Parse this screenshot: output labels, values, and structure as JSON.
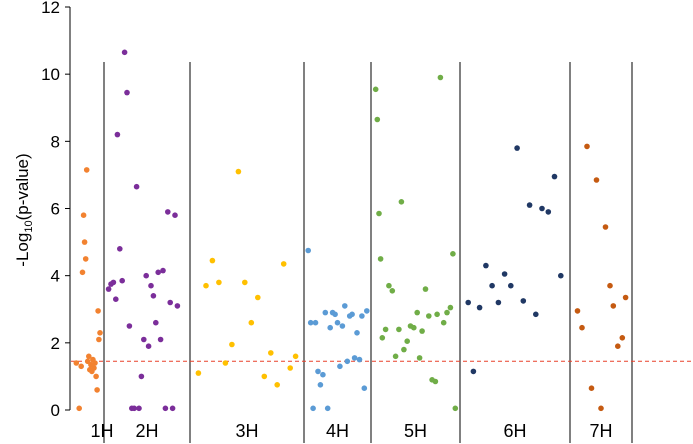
{
  "chart_data": {
    "type": "scatter",
    "title": "",
    "xlabel": "",
    "ylabel": {
      "prefix": "-Log",
      "sub": "10",
      "suffix": "(p-value)"
    },
    "ylim": [
      0,
      12
    ],
    "yticks": [
      "0",
      "2",
      "4",
      "6",
      "8",
      "10",
      "12"
    ],
    "threshold": 1.45,
    "threshold_color": "#e8402a",
    "grid": false,
    "chromosomes": [
      {
        "name": "1H",
        "color": "#f28230",
        "x": [
          0.05,
          0.16,
          0.24,
          0.29,
          0.33,
          0.37,
          0.41,
          0.45,
          0.49,
          0.53,
          0.57,
          0.61,
          0.65,
          0.69,
          0.73,
          0.77,
          0.81,
          0.85,
          0.89,
          0.92,
          0.96
        ],
        "y": [
          1.4,
          0.05,
          1.3,
          4.1,
          5.8,
          5.0,
          4.5,
          7.15,
          1.45,
          1.6,
          1.2,
          1.35,
          1.15,
          1.5,
          1.25,
          1.4,
          1.0,
          0.6,
          2.95,
          2.1,
          2.3
        ]
      },
      {
        "name": "2H",
        "color": "#7b2e9a",
        "x": [
          0.02,
          0.05,
          0.08,
          0.11,
          0.13,
          0.16,
          0.19,
          0.22,
          0.25,
          0.28,
          0.31,
          0.34,
          0.37,
          0.4,
          0.43,
          0.46,
          0.49,
          0.52,
          0.55,
          0.58,
          0.61,
          0.64,
          0.67,
          0.7,
          0.73,
          0.76,
          0.79,
          0.82,
          0.85,
          0.88
        ],
        "y": [
          3.6,
          3.75,
          3.8,
          3.3,
          8.2,
          4.8,
          3.85,
          10.65,
          9.45,
          2.5,
          0.05,
          0.05,
          6.65,
          0.05,
          1.0,
          2.1,
          4.0,
          1.9,
          3.7,
          3.4,
          2.6,
          4.1,
          2.1,
          4.15,
          0.05,
          5.9,
          3.2,
          0.05,
          5.8,
          3.1
        ]
      },
      {
        "name": "3H",
        "color": "#ffc000",
        "x": [
          0.05,
          0.12,
          0.18,
          0.24,
          0.3,
          0.36,
          0.42,
          0.48,
          0.54,
          0.6,
          0.66,
          0.72,
          0.78,
          0.84,
          0.9,
          0.95
        ],
        "y": [
          1.1,
          3.7,
          4.45,
          3.8,
          1.4,
          1.95,
          7.1,
          3.8,
          2.6,
          3.35,
          1.0,
          1.7,
          0.75,
          4.35,
          1.25,
          1.6
        ]
      },
      {
        "name": "4H",
        "color": "#5b9bd5",
        "x": [
          0.02,
          0.06,
          0.1,
          0.14,
          0.18,
          0.22,
          0.26,
          0.3,
          0.34,
          0.38,
          0.42,
          0.46,
          0.5,
          0.54,
          0.58,
          0.62,
          0.66,
          0.7,
          0.74,
          0.78,
          0.82,
          0.86,
          0.9,
          0.94,
          0.98
        ],
        "y": [
          4.75,
          2.6,
          0.05,
          2.6,
          1.15,
          0.75,
          1.05,
          2.9,
          0.05,
          2.45,
          2.9,
          2.85,
          2.6,
          1.3,
          2.5,
          3.1,
          1.45,
          2.8,
          2.85,
          1.55,
          2.3,
          1.5,
          2.8,
          0.65,
          2.95
        ]
      },
      {
        "name": "5H",
        "color": "#70ad47",
        "x": [
          0.02,
          0.04,
          0.06,
          0.08,
          0.1,
          0.14,
          0.18,
          0.22,
          0.26,
          0.3,
          0.33,
          0.36,
          0.4,
          0.44,
          0.48,
          0.52,
          0.55,
          0.58,
          0.62,
          0.66,
          0.7,
          0.74,
          0.76,
          0.8,
          0.84,
          0.88,
          0.92,
          0.95,
          0.98
        ],
        "y": [
          9.55,
          8.65,
          5.85,
          4.5,
          2.15,
          2.4,
          3.7,
          3.55,
          1.6,
          2.4,
          6.2,
          1.8,
          2.05,
          2.5,
          2.45,
          2.9,
          1.55,
          2.35,
          3.6,
          2.8,
          0.9,
          0.85,
          2.85,
          9.9,
          2.6,
          2.9,
          3.05,
          4.65,
          0.05
        ]
      },
      {
        "name": "6H",
        "color": "#203864",
        "x": [
          0.05,
          0.1,
          0.16,
          0.22,
          0.28,
          0.34,
          0.4,
          0.46,
          0.52,
          0.58,
          0.64,
          0.7,
          0.76,
          0.82,
          0.88,
          0.94
        ],
        "y": [
          3.2,
          1.15,
          3.05,
          4.3,
          3.7,
          3.2,
          4.05,
          3.7,
          7.8,
          3.25,
          6.1,
          2.85,
          6.0,
          5.9,
          6.95,
          4.0
        ]
      },
      {
        "name": "7H",
        "color": "#c55a11",
        "x": [
          0.08,
          0.16,
          0.25,
          0.33,
          0.42,
          0.5,
          0.58,
          0.66,
          0.72,
          0.8,
          0.88,
          0.94
        ],
        "y": [
          2.95,
          2.45,
          7.85,
          0.65,
          6.85,
          0.05,
          5.45,
          3.7,
          3.1,
          1.9,
          2.15,
          3.35
        ]
      }
    ]
  }
}
